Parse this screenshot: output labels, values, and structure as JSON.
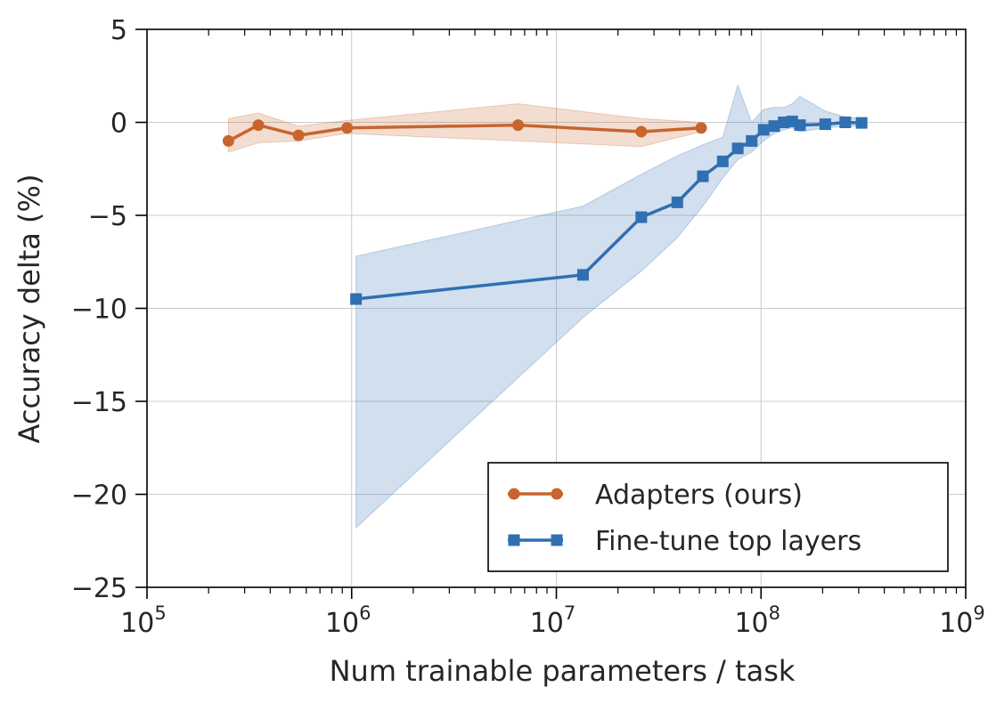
{
  "chart_data": {
    "type": "line",
    "title": "",
    "xlabel": "Num trainable parameters / task",
    "ylabel": "Accuracy delta (%)",
    "xscale": "log",
    "xlim": [
      100000,
      1000000000
    ],
    "ylim": [
      -25,
      5
    ],
    "xticks": [
      {
        "value": 100000,
        "base": "10",
        "exp": "5"
      },
      {
        "value": 1000000,
        "base": "10",
        "exp": "6"
      },
      {
        "value": 10000000,
        "base": "10",
        "exp": "7"
      },
      {
        "value": 100000000,
        "base": "10",
        "exp": "8"
      },
      {
        "value": 1000000000,
        "base": "10",
        "exp": "9"
      }
    ],
    "yticks": [
      {
        "value": 5,
        "label": "5"
      },
      {
        "value": 0,
        "label": "0"
      },
      {
        "value": -5,
        "label": "−5"
      },
      {
        "value": -10,
        "label": "−10"
      },
      {
        "value": -15,
        "label": "−15"
      },
      {
        "value": -20,
        "label": "−20"
      },
      {
        "value": -25,
        "label": "−25"
      }
    ],
    "grid": true,
    "legend_position": "lower-right",
    "series": [
      {
        "name": "Adapters (ours)",
        "color": "#c8642e",
        "marker": "circle",
        "x": [
          250000,
          350000,
          550000,
          950000,
          6500000,
          26000000,
          51000000
        ],
        "y": [
          -1.0,
          -0.15,
          -0.7,
          -0.3,
          -0.15,
          -0.5,
          -0.3
        ],
        "band_upper": [
          0.2,
          0.5,
          -0.2,
          0.1,
          1.0,
          0.2,
          0.0
        ],
        "band_lower": [
          -1.6,
          -1.1,
          -1.0,
          -0.6,
          -1.0,
          -1.3,
          -0.5
        ]
      },
      {
        "name": "Fine-tune top layers",
        "color": "#2f6fb2",
        "marker": "square",
        "x": [
          1050000,
          13500000,
          26000000,
          39000000,
          52000000,
          65000000,
          77000000,
          90000000,
          103000000,
          116000000,
          129000000,
          142000000,
          155000000,
          206000000,
          258000000,
          310000000
        ],
        "y": [
          -9.5,
          -8.2,
          -5.1,
          -4.3,
          -2.9,
          -2.1,
          -1.4,
          -1.0,
          -0.4,
          -0.2,
          0.0,
          0.05,
          -0.15,
          -0.1,
          0.0,
          -0.03
        ],
        "band_upper": [
          -7.2,
          -4.5,
          -2.8,
          -1.8,
          -1.2,
          -0.8,
          2.0,
          0.0,
          0.7,
          0.8,
          0.8,
          1.0,
          1.4,
          0.6,
          0.3,
          0.2
        ],
        "band_lower": [
          -21.8,
          -10.5,
          -8.0,
          -6.2,
          -4.5,
          -3.0,
          -2.0,
          -1.6,
          -1.0,
          -0.6,
          -0.4,
          -0.3,
          -0.5,
          -0.3,
          -0.2,
          -0.2
        ]
      }
    ]
  }
}
